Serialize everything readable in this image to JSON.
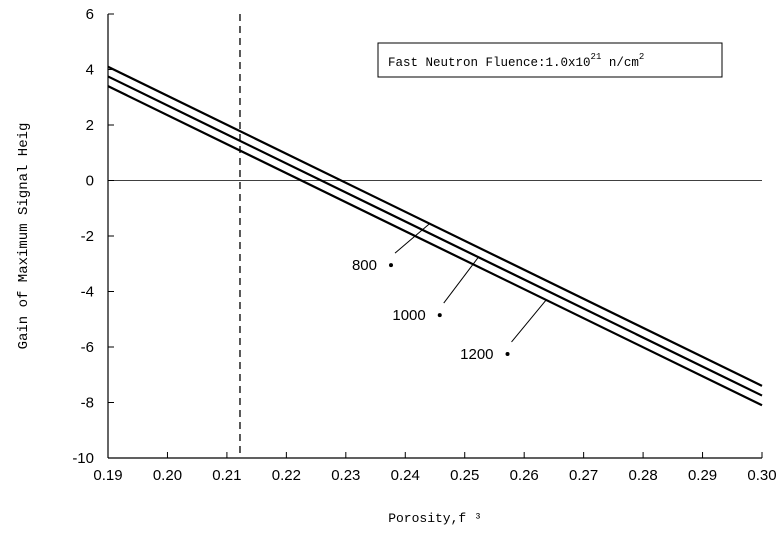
{
  "chart_data": {
    "type": "line",
    "title": "",
    "xlabel": "Porosity,f ³",
    "ylabel": "Gain of Maximum Signal Heig",
    "xlim": [
      0.19,
      0.3
    ],
    "ylim": [
      -10,
      6
    ],
    "grid": false,
    "x_ticks": [
      0.19,
      0.2,
      0.21,
      0.22,
      0.23,
      0.24,
      0.25,
      0.26,
      0.27,
      0.28,
      0.29,
      0.3
    ],
    "x_tick_labels": [
      "0.19",
      "0.20",
      "0.21",
      "0.22",
      "0.23",
      "0.24",
      "0.25",
      "0.26",
      "0.27",
      "0.28",
      "0.29",
      "0.30"
    ],
    "y_ticks": [
      6,
      4,
      2,
      0,
      -2,
      -4,
      -6,
      -8,
      -10
    ],
    "y_tick_labels": [
      "6",
      "4",
      "2",
      "0",
      "-2",
      "-4",
      "-6",
      "-8",
      "-10"
    ],
    "vertical_reference_x": 0.2122,
    "horizontal_reference_y": 0,
    "annotation": {
      "prefix": "Fast Neutron Fluence:1.0x10",
      "exponent": "21",
      "unit": " n/cm",
      "unit_exponent": "2"
    },
    "series": [
      {
        "name": "800",
        "x": [
          0.19,
          0.3
        ],
        "y": [
          4.1,
          -7.4
        ],
        "label_x": 0.2376,
        "label_y": -3.05
      },
      {
        "name": "1000",
        "x": [
          0.19,
          0.3
        ],
        "y": [
          3.75,
          -7.75
        ],
        "label_x": 0.2458,
        "label_y": -4.85
      },
      {
        "name": "1200",
        "x": [
          0.19,
          0.3
        ],
        "y": [
          3.4,
          -8.1
        ],
        "label_x": 0.2572,
        "label_y": -6.25
      }
    ]
  }
}
